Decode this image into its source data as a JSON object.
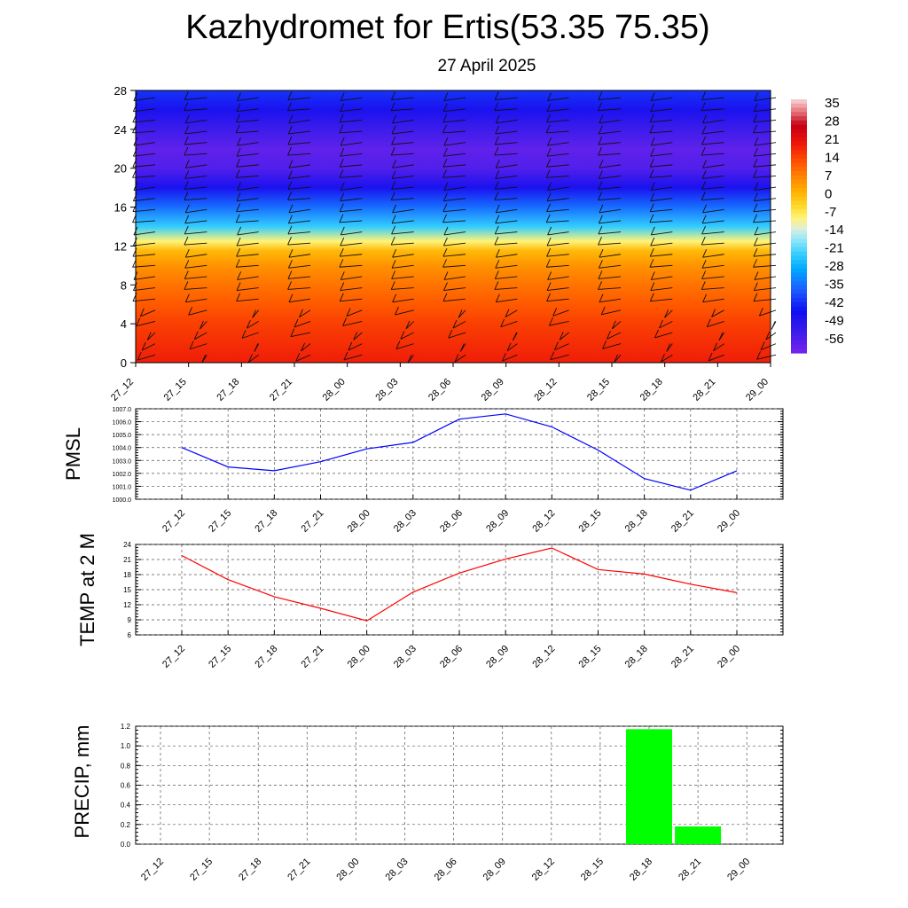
{
  "title": "Kazhydromet for Ertis(53.35 75.35)",
  "subtitle": "27 April 2025",
  "time_labels": [
    "27_12",
    "27_15",
    "27_18",
    "27_21",
    "28_00",
    "28_03",
    "28_06",
    "28_09",
    "28_12",
    "28_15",
    "28_18",
    "28_21",
    "29_00"
  ],
  "colors": {
    "pmsl_line": "#0000ff",
    "temp_line": "#ff0000",
    "precip_bar": "#00ff00"
  },
  "chart_data": [
    {
      "type": "heatmap",
      "title": "",
      "x": [
        "27_12",
        "27_15",
        "27_18",
        "27_21",
        "28_00",
        "28_03",
        "28_06",
        "28_09",
        "28_12",
        "28_15",
        "28_18",
        "28_21",
        "29_00"
      ],
      "y_ticks": [
        0,
        4,
        8,
        12,
        16,
        20,
        24,
        28
      ],
      "ylim": [
        0,
        28
      ],
      "colorbar_labels": [
        "35",
        "28",
        "21",
        "14",
        "7",
        "0",
        "-7",
        "-14",
        "-21",
        "-28",
        "-35",
        "-42",
        "-49",
        "-56"
      ],
      "colorbar_range": [
        -60,
        38
      ],
      "temperature_profile": [
        {
          "level": 0,
          "value": 20
        },
        {
          "level": 2,
          "value": 18
        },
        {
          "level": 4,
          "value": 16
        },
        {
          "level": 6,
          "value": 13
        },
        {
          "level": 8,
          "value": 10
        },
        {
          "level": 10,
          "value": 6
        },
        {
          "level": 11.5,
          "value": 1
        },
        {
          "level": 12.5,
          "value": -8
        },
        {
          "level": 14,
          "value": -22
        },
        {
          "level": 16,
          "value": -34
        },
        {
          "level": 18,
          "value": -46
        },
        {
          "level": 20,
          "value": -55
        },
        {
          "level": 22,
          "value": -57
        },
        {
          "level": 24,
          "value": -52
        },
        {
          "level": 26,
          "value": -46
        },
        {
          "level": 28,
          "value": -40
        }
      ],
      "grid": false,
      "legend": "colorbar-right"
    },
    {
      "type": "line",
      "ylabel": "PMSL",
      "x": [
        "27_12",
        "27_15",
        "27_18",
        "27_21",
        "28_00",
        "28_03",
        "28_06",
        "28_09",
        "28_12",
        "28_15",
        "28_18",
        "28_21",
        "29_00"
      ],
      "series": [
        {
          "values": [
            1004.0,
            1002.5,
            1002.2,
            1002.9,
            1003.9,
            1004.4,
            1006.2,
            1006.6,
            1005.6,
            1003.8,
            1001.6,
            1000.7,
            1002.2
          ]
        }
      ],
      "y_ticks": [
        "1000.0",
        "1001.0",
        "1002.0",
        "1003.0",
        "1004.0",
        "1005.0",
        "1006.0",
        "1007.0"
      ],
      "ylim": [
        1000,
        1007
      ],
      "grid": true
    },
    {
      "type": "line",
      "ylabel": "TEMP at 2 M",
      "x": [
        "27_12",
        "27_15",
        "27_18",
        "27_21",
        "28_00",
        "28_03",
        "28_06",
        "28_09",
        "28_12",
        "28_15",
        "28_18",
        "28_21",
        "29_00"
      ],
      "series": [
        {
          "values": [
            21.8,
            17.0,
            13.6,
            11.3,
            8.8,
            14.5,
            18.3,
            21.1,
            23.3,
            19.0,
            18.1,
            16.1,
            14.4
          ]
        }
      ],
      "y_ticks": [
        "6",
        "9",
        "12",
        "15",
        "18",
        "21",
        "24"
      ],
      "ylim": [
        6,
        24
      ],
      "grid": true
    },
    {
      "type": "bar",
      "ylabel": "PRECIP, mm",
      "categories": [
        "27_12",
        "27_15",
        "27_18",
        "27_21",
        "28_00",
        "28_03",
        "28_06",
        "28_09",
        "28_12",
        "28_15",
        "28_18",
        "28_21",
        "29_00"
      ],
      "values": [
        0,
        0,
        0,
        0,
        0,
        0,
        0,
        0,
        0,
        0,
        1.17,
        0.18,
        0
      ],
      "y_ticks": [
        "0.0",
        "0.2",
        "0.4",
        "0.6",
        "0.8",
        "1.0",
        "1.2"
      ],
      "ylim": [
        0,
        1.2
      ],
      "grid": true
    }
  ]
}
